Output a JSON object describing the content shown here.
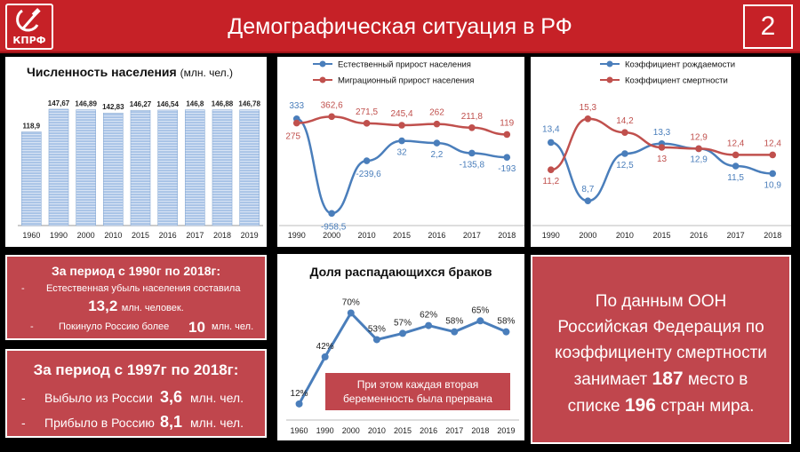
{
  "header": {
    "logo_text": "КПРФ",
    "title": "Демографическая ситуация в РФ",
    "slide_number": "2"
  },
  "colors": {
    "brand_red": "#c62127",
    "box_red": "#c0464d",
    "blue_series": "#4a7ebb",
    "red_series": "#c0504d",
    "bar_fill": "#a6c2e6"
  },
  "chart_population": {
    "title": "Численность населения",
    "unit": "(млн. чел.)"
  },
  "chart_migration": {},
  "chart_rates": {},
  "chart_divorce": {
    "title": "Доля распадающихся браков",
    "note": "При этом каждая вторая беременность была прервана"
  },
  "chart_data": [
    {
      "type": "bar",
      "title": "Численность населения (млн. чел.)",
      "categories": [
        "1960",
        "1990",
        "2000",
        "2010",
        "2015",
        "2016",
        "2017",
        "2018",
        "2019"
      ],
      "values": [
        118.9,
        147.67,
        146.89,
        142.83,
        146.27,
        146.54,
        146.8,
        146.88,
        146.78
      ],
      "value_labels": [
        "118,9",
        "147,67",
        "146,89",
        "142,83",
        "146,27",
        "146,54",
        "146,8",
        "146,88",
        "146,78"
      ],
      "ylim": [
        0,
        160
      ]
    },
    {
      "type": "line",
      "categories": [
        "1990",
        "2000",
        "2010",
        "2015",
        "2016",
        "2017",
        "2018"
      ],
      "series": [
        {
          "name": "Естественный прирост населения",
          "values": [
            333,
            -958.5,
            -239.6,
            32,
            2.2,
            -135.8,
            -193
          ],
          "labels": [
            "333",
            "-958,5",
            "-239,6",
            "32",
            "2,2",
            "-135,8",
            "-193"
          ],
          "color": "#4a7ebb"
        },
        {
          "name": "Миграционный прирост населения",
          "values": [
            275,
            362.6,
            271.5,
            245.4,
            262,
            211.8,
            119
          ],
          "labels": [
            "275",
            "362,6",
            "271,5",
            "245,4",
            "262",
            "211,8",
            "119"
          ],
          "color": "#c0504d"
        }
      ],
      "legend": "top",
      "ylim": [
        -1100,
        500
      ]
    },
    {
      "type": "line",
      "categories": [
        "1990",
        "2000",
        "2010",
        "2015",
        "2016",
        "2017",
        "2018"
      ],
      "series": [
        {
          "name": "Коэффициент рождаемости",
          "values": [
            13.4,
            8.7,
            12.5,
            13.3,
            12.9,
            11.5,
            10.9
          ],
          "labels": [
            "13,4",
            "8,7",
            "12,5",
            "13,3",
            "12,9",
            "11,5",
            "10,9"
          ],
          "color": "#4a7ebb"
        },
        {
          "name": "Коэффициент смертности",
          "values": [
            11.2,
            15.3,
            14.2,
            13,
            12.9,
            12.4,
            12.4
          ],
          "labels": [
            "11,2",
            "15,3",
            "14,2",
            "13",
            "12,9",
            "12,4",
            "12,4"
          ],
          "color": "#c0504d"
        }
      ],
      "legend": "top",
      "ylim": [
        6,
        18
      ]
    },
    {
      "type": "line",
      "title": "Доля распадающихся браков",
      "categories": [
        "1960",
        "1990",
        "2000",
        "2010",
        "2015",
        "2016",
        "2017",
        "2018",
        "2019"
      ],
      "values": [
        12,
        42,
        70,
        53,
        57,
        62,
        58,
        65,
        58
      ],
      "value_labels": [
        "12%",
        "42%",
        "70%",
        "53%",
        "57%",
        "62%",
        "58%",
        "65%",
        "58%"
      ],
      "ylim": [
        0,
        85
      ]
    }
  ],
  "box_left_top": {
    "heading": "За период с 1990г по 2018г:",
    "line1_bullet": "-",
    "line1_text": "Естественная убыль населения составила",
    "line1_value": "13,2",
    "line1_unit": "млн. человек.",
    "line2_bullet": "-",
    "line2_text": "Покинуло Россию более",
    "line2_value": "10",
    "line2_unit": "млн. чел."
  },
  "box_left_bottom": {
    "heading": "За период с 1997г по 2018г:",
    "line1_bullet": "-",
    "line1_text": "Выбыло из России",
    "line1_value": "3,6",
    "line1_unit": "млн. чел.",
    "line2_bullet": "-",
    "line2_text": "Прибыло в Россию",
    "line2_value": "8,1",
    "line2_unit": "млн. чел."
  },
  "box_right": {
    "line1": "По данным ООН",
    "line2": "Российская Федерация по",
    "line3": "коэффициенту смертности",
    "line4_pre": "занимает",
    "line4_value": "187",
    "line4_post": "место в",
    "line5_pre": "списке",
    "line5_value": "196",
    "line5_post": "стран мира."
  }
}
